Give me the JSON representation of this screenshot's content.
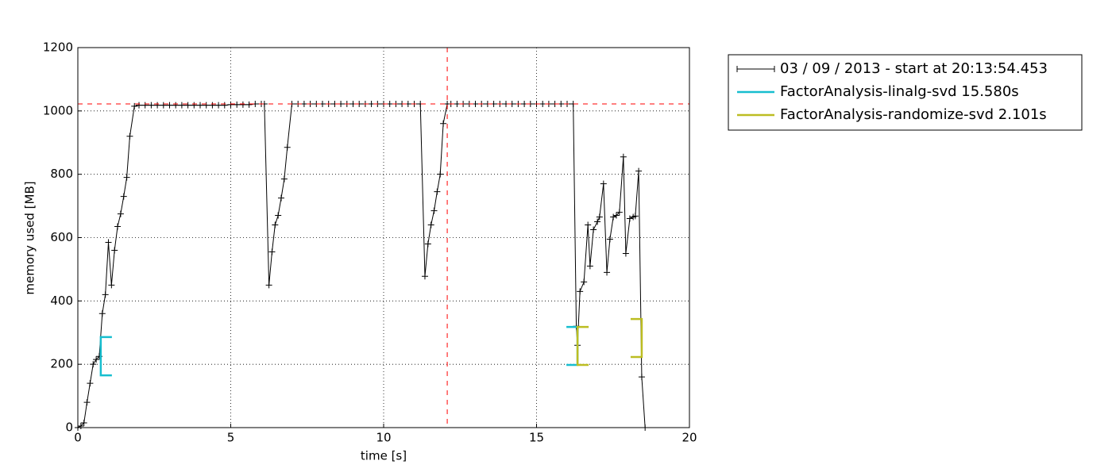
{
  "chart_data": {
    "type": "line",
    "xlabel": "time [s]",
    "ylabel": "memory used [MB]",
    "xlim": [
      0,
      20
    ],
    "xticks": [
      0,
      5,
      10,
      15,
      20
    ],
    "ylim": [
      0,
      1200
    ],
    "yticks": [
      0,
      200,
      400,
      600,
      800,
      1000,
      1200
    ],
    "grid": true,
    "legend": "outside right",
    "series": [
      {
        "name": "03 / 09 / 2013 - start at 20:13:54.453",
        "color": "#000000",
        "x": [
          0,
          0.1,
          0.2,
          0.3,
          0.4,
          0.5,
          0.6,
          0.7,
          0.8,
          0.9,
          1.0,
          1.1,
          1.2,
          1.3,
          1.4,
          1.5,
          1.6,
          1.7,
          1.85,
          2.0,
          2.2,
          2.4,
          2.6,
          2.8,
          3.0,
          3.2,
          3.4,
          3.6,
          3.8,
          4.0,
          4.2,
          4.4,
          4.6,
          4.8,
          5.0,
          5.2,
          5.4,
          5.6,
          5.8,
          6.0,
          6.1,
          6.25,
          6.35,
          6.45,
          6.55,
          6.65,
          6.75,
          6.85,
          7.0,
          7.2,
          7.4,
          7.6,
          7.8,
          8.0,
          8.2,
          8.4,
          8.6,
          8.8,
          9.0,
          9.2,
          9.4,
          9.6,
          9.8,
          10.0,
          10.2,
          10.4,
          10.6,
          10.8,
          11.0,
          11.2,
          11.35,
          11.45,
          11.55,
          11.65,
          11.75,
          11.85,
          11.95,
          12.08,
          12.2,
          12.4,
          12.6,
          12.8,
          13.0,
          13.2,
          13.4,
          13.6,
          13.8,
          14.0,
          14.2,
          14.4,
          14.6,
          14.8,
          15.0,
          15.2,
          15.4,
          15.6,
          15.8,
          16.0,
          16.2,
          16.3,
          16.34,
          16.42,
          16.55,
          16.68,
          16.75,
          16.86,
          16.99,
          17.06,
          17.19,
          17.3,
          17.4,
          17.51,
          17.61,
          17.71,
          17.84,
          17.92,
          18.05,
          18.16,
          18.23,
          18.34,
          18.44,
          18.55
        ],
        "y": [
          0,
          5,
          15,
          80,
          140,
          200,
          215,
          225,
          360,
          420,
          585,
          450,
          560,
          635,
          675,
          730,
          790,
          920,
          1015,
          1018,
          1018,
          1018,
          1018,
          1018,
          1018,
          1018,
          1018,
          1018,
          1018,
          1018,
          1018,
          1018,
          1018,
          1018,
          1020,
          1020,
          1020,
          1020,
          1022,
          1022,
          1022,
          450,
          555,
          640,
          670,
          725,
          785,
          885,
          1022,
          1022,
          1022,
          1022,
          1022,
          1022,
          1022,
          1022,
          1022,
          1022,
          1022,
          1022,
          1022,
          1022,
          1022,
          1022,
          1022,
          1022,
          1022,
          1022,
          1022,
          1022,
          478,
          580,
          640,
          685,
          745,
          800,
          960,
          1022,
          1022,
          1022,
          1022,
          1022,
          1022,
          1022,
          1022,
          1022,
          1022,
          1022,
          1022,
          1022,
          1022,
          1022,
          1022,
          1022,
          1022,
          1022,
          1022,
          1022,
          1022,
          320,
          260,
          430,
          460,
          640,
          510,
          625,
          650,
          665,
          770,
          490,
          595,
          665,
          670,
          680,
          855,
          550,
          660,
          665,
          668,
          810,
          160,
          0
        ]
      }
    ],
    "functions": [
      {
        "name": "FactorAnalysis-linalg-svd 15.580s",
        "color": "#17becf",
        "start": {
          "x": 0.75,
          "ymin": 165,
          "ymax": 286
        },
        "end": {
          "x": 16.34,
          "ymin": 198,
          "ymax": 318
        }
      },
      {
        "name": "FactorAnalysis-randomize-svd 2.101s",
        "color": "#bcbd22",
        "start": {
          "x": 16.34,
          "ymin": 198,
          "ymax": 318
        },
        "end": {
          "x": 18.44,
          "ymin": 223,
          "ymax": 343
        }
      }
    ],
    "peak": {
      "x": 12.08,
      "y": 1022,
      "color": "#ff0000"
    }
  }
}
